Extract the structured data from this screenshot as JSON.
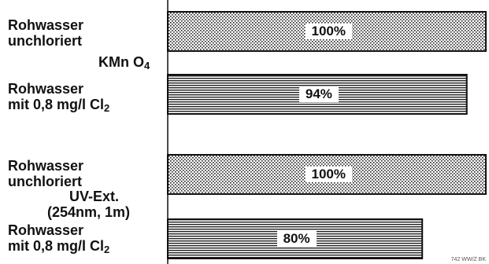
{
  "chart_data": {
    "type": "bar",
    "orientation": "horizontal",
    "xlim": [
      0,
      100
    ],
    "groups": [
      {
        "measure": "KMn O4",
        "bars": [
          {
            "category": "Rohwasser unchloriert",
            "value": 100,
            "label": "100%",
            "pattern": "dotted"
          },
          {
            "category": "Rohwasser mit 0,8 mg/l Cl2",
            "value": 94,
            "label": "94%",
            "pattern": "striped"
          }
        ]
      },
      {
        "measure": "UV-Ext. (254nm, 1m)",
        "bars": [
          {
            "category": "Rohwasser unchloriert",
            "value": 100,
            "label": "100%",
            "pattern": "dotted"
          },
          {
            "category": "Rohwasser mit 0,8 mg/l Cl2",
            "value": 80,
            "label": "80%",
            "pattern": "striped"
          }
        ]
      }
    ]
  },
  "labels": {
    "cat1": {
      "line1": "Rohwasser",
      "line2": "unchloriert"
    },
    "cat2": {
      "line1": "Rohwasser",
      "line2": "mit  0,8 mg/l Cl",
      "sub": "2"
    },
    "cat3": {
      "line1": "Rohwasser",
      "line2": "unchloriert"
    },
    "cat4": {
      "line1": "Rohwasser",
      "line2": "mit  0,8 mg/l Cl",
      "sub": "2"
    },
    "measure1": {
      "text": "KMn O",
      "sub": "4"
    },
    "measure2": {
      "line1": "UV-Ext.",
      "line2": "(254nm, 1m)"
    }
  },
  "footer_note": "742 WW/Z BK",
  "colors": {
    "ink": "#111111",
    "background": "#ffffff"
  }
}
